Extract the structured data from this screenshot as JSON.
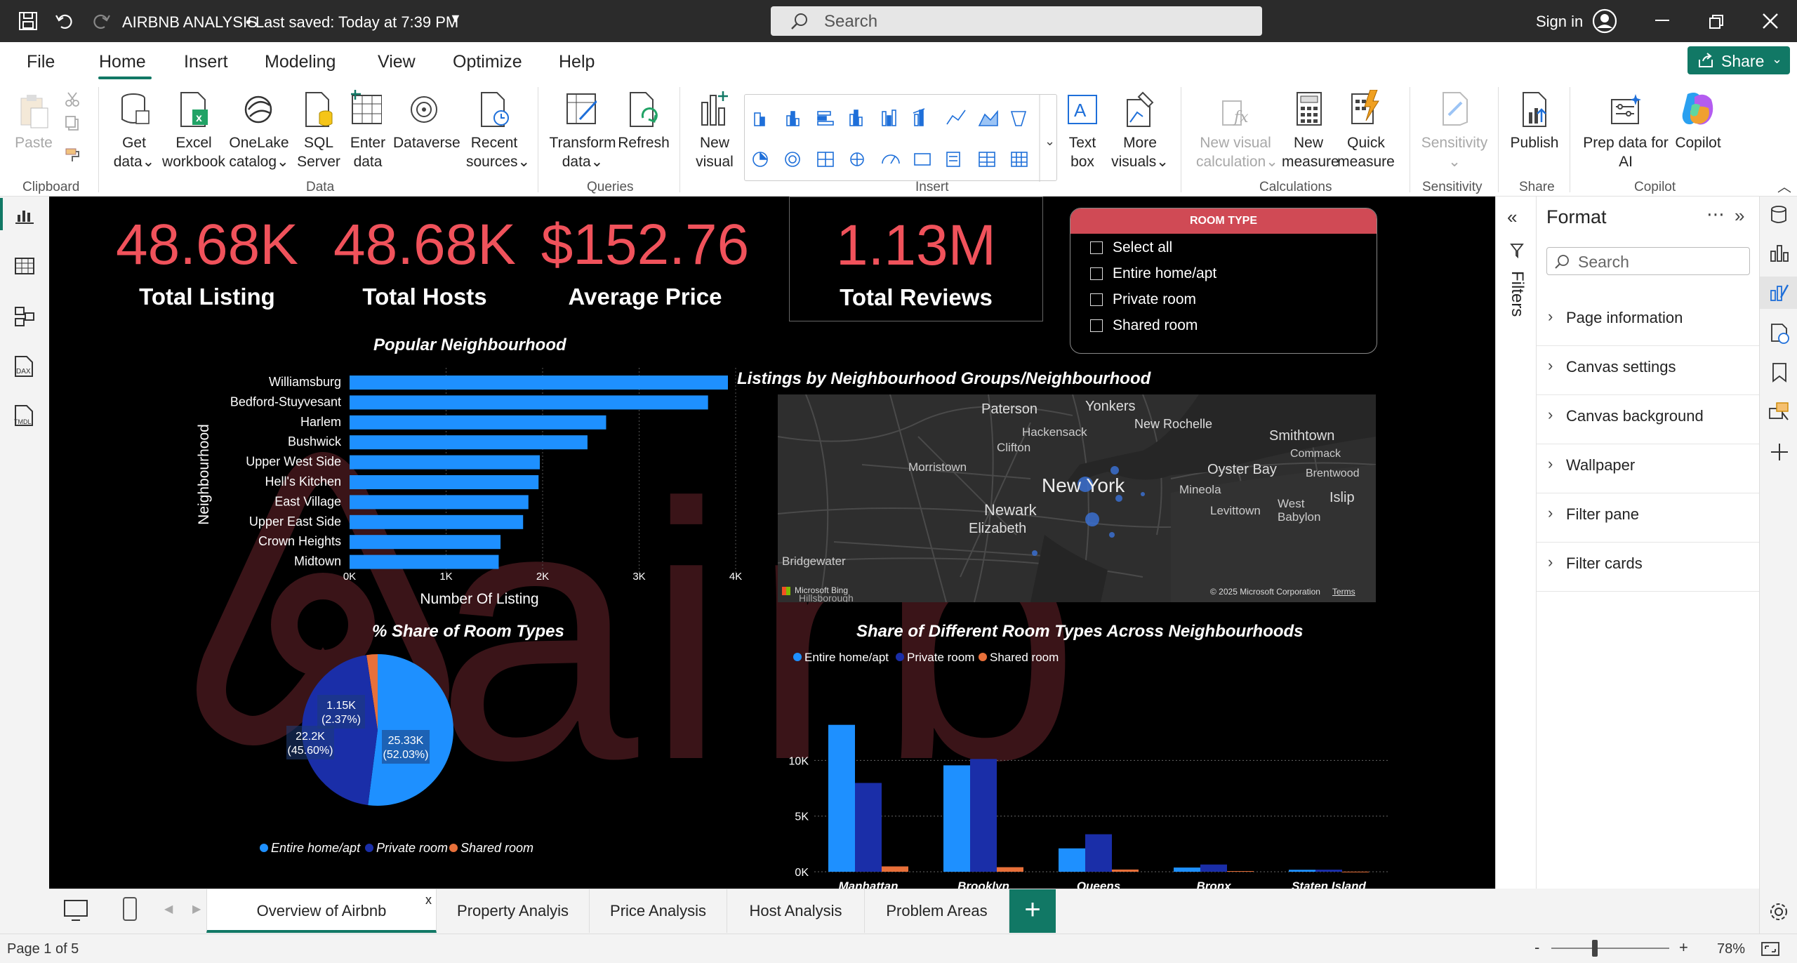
{
  "titlebar": {
    "title": "AIRBNB ANALYSIS",
    "saved": "• Last saved: Today at 7:39 PM",
    "search_placeholder": "Search",
    "signin": "Sign in"
  },
  "menu": {
    "items": [
      "File",
      "Home",
      "Insert",
      "Modeling",
      "View",
      "Optimize",
      "Help"
    ],
    "active": "Home",
    "share": "Share"
  },
  "ribbon": {
    "paste": "Paste",
    "clipboard": "Clipboard",
    "get_data": [
      "Get",
      "data"
    ],
    "excel": [
      "Excel",
      "workbook"
    ],
    "onelake": [
      "OneLake",
      "catalog"
    ],
    "sql": [
      "SQL",
      "Server"
    ],
    "enter": [
      "Enter",
      "data"
    ],
    "dataverse": "Dataverse",
    "recent": [
      "Recent",
      "sources"
    ],
    "data_group": "Data",
    "transform": [
      "Transform",
      "data"
    ],
    "refresh": "Refresh",
    "queries_group": "Queries",
    "new_visual": [
      "New",
      "visual"
    ],
    "insert_group": "Insert",
    "text_box": [
      "Text",
      "box"
    ],
    "more_visuals": [
      "More",
      "visuals"
    ],
    "new_visual_calc": [
      "New visual",
      "calculation"
    ],
    "new_measure": [
      "New",
      "measure"
    ],
    "quick_measure": [
      "Quick",
      "measure"
    ],
    "calc_group": "Calculations",
    "sensitivity": "Sensitivity",
    "sensitivity_group": "Sensitivity",
    "publish": "Publish",
    "share_group": "Share",
    "prep_copilot": [
      "Prep data for",
      "AI"
    ],
    "copilot": "Copilot",
    "copilot_group": "Copilot"
  },
  "kpis": [
    {
      "value": "48.68K",
      "label": "Total Listing"
    },
    {
      "value": "48.68K",
      "label": "Total Hosts"
    },
    {
      "value": "$152.76",
      "label": "Average Price"
    },
    {
      "value": "1.13M",
      "label": "Total Reviews"
    }
  ],
  "slicer": {
    "header": "ROOM TYPE",
    "items": [
      "Select all",
      "Entire home/apt",
      "Private room",
      "Shared room"
    ]
  },
  "map": {
    "title": "Listings by Neighbourhood Groups/Neighbourhood",
    "bing": "Microsoft Bing",
    "copyright": "© 2025 Microsoft Corporation",
    "terms": "Terms",
    "places": [
      "Paterson",
      "Yonkers",
      "New Rochelle",
      "Hackensack",
      "Smithtown",
      "Clifton",
      "Commack",
      "Morristown",
      "Oyster Bay",
      "Brentwood",
      "New York",
      "Mineola",
      "Islip",
      "Newark",
      "West Babylon",
      "Levittown",
      "Elizabeth",
      "Bridgewater",
      "Hillsborough"
    ]
  },
  "colors": {
    "entire": "#1e90ff",
    "private": "#1a2ea8",
    "shared": "#e8703a",
    "kpi": "#f0525b",
    "accent": "#117865"
  },
  "chart_data": [
    {
      "type": "bar",
      "title": "Popular Neighbourhood",
      "xlabel": "Number Of Listing",
      "ylabel": "Neighbourhood",
      "categories": [
        "Williamsburg",
        "Bedford-Stuyvesant",
        "Harlem",
        "Bushwick",
        "Upper West Side",
        "Hell's Kitchen",
        "East Village",
        "Upper East Side",
        "Crown Heights",
        "Midtown"
      ],
      "values": [
        3920,
        3714,
        2658,
        2465,
        1971,
        1958,
        1853,
        1798,
        1564,
        1545
      ],
      "xlim": [
        0,
        4000
      ],
      "xticks": [
        "0K",
        "1K",
        "2K",
        "3K",
        "4K"
      ]
    },
    {
      "type": "pie",
      "title": "% Share of Room Types",
      "labels": [
        "Entire home/apt",
        "Private room",
        "Shared room"
      ],
      "values": [
        25.33,
        22.2,
        1.15
      ],
      "data_labels": [
        "25.33K\n(52.03%)",
        "22.2K\n(45.60%)",
        "1.15K\n(2.37%)"
      ]
    },
    {
      "type": "bar",
      "title": "Share of Different Room Types Across Neighbourhoods",
      "categories": [
        "Manhattan",
        "Brooklyn",
        "Queens",
        "Bronx",
        "Staten Island"
      ],
      "series": [
        {
          "name": "Entire home/apt",
          "values": [
            13200,
            9560,
            2100,
            380,
            180
          ]
        },
        {
          "name": "Private room",
          "values": [
            7980,
            10130,
            3370,
            650,
            190
          ]
        },
        {
          "name": "Shared room",
          "values": [
            480,
            410,
            200,
            60,
            10
          ]
        }
      ],
      "ylim": [
        0,
        14000
      ],
      "yticks": [
        "0K",
        "5K",
        "10K"
      ]
    }
  ],
  "filters": {
    "label": "Filters"
  },
  "format": {
    "title": "Format",
    "search": "Search",
    "sections": [
      "Page information",
      "Canvas settings",
      "Canvas background",
      "Wallpaper",
      "Filter pane",
      "Filter cards"
    ]
  },
  "tabs": [
    "Overview of Airbnb",
    "Property Analyis",
    "Price Analysis",
    "Host Analysis",
    "Problem Areas"
  ],
  "status": {
    "page": "Page 1 of 5",
    "zoom": "78%"
  }
}
